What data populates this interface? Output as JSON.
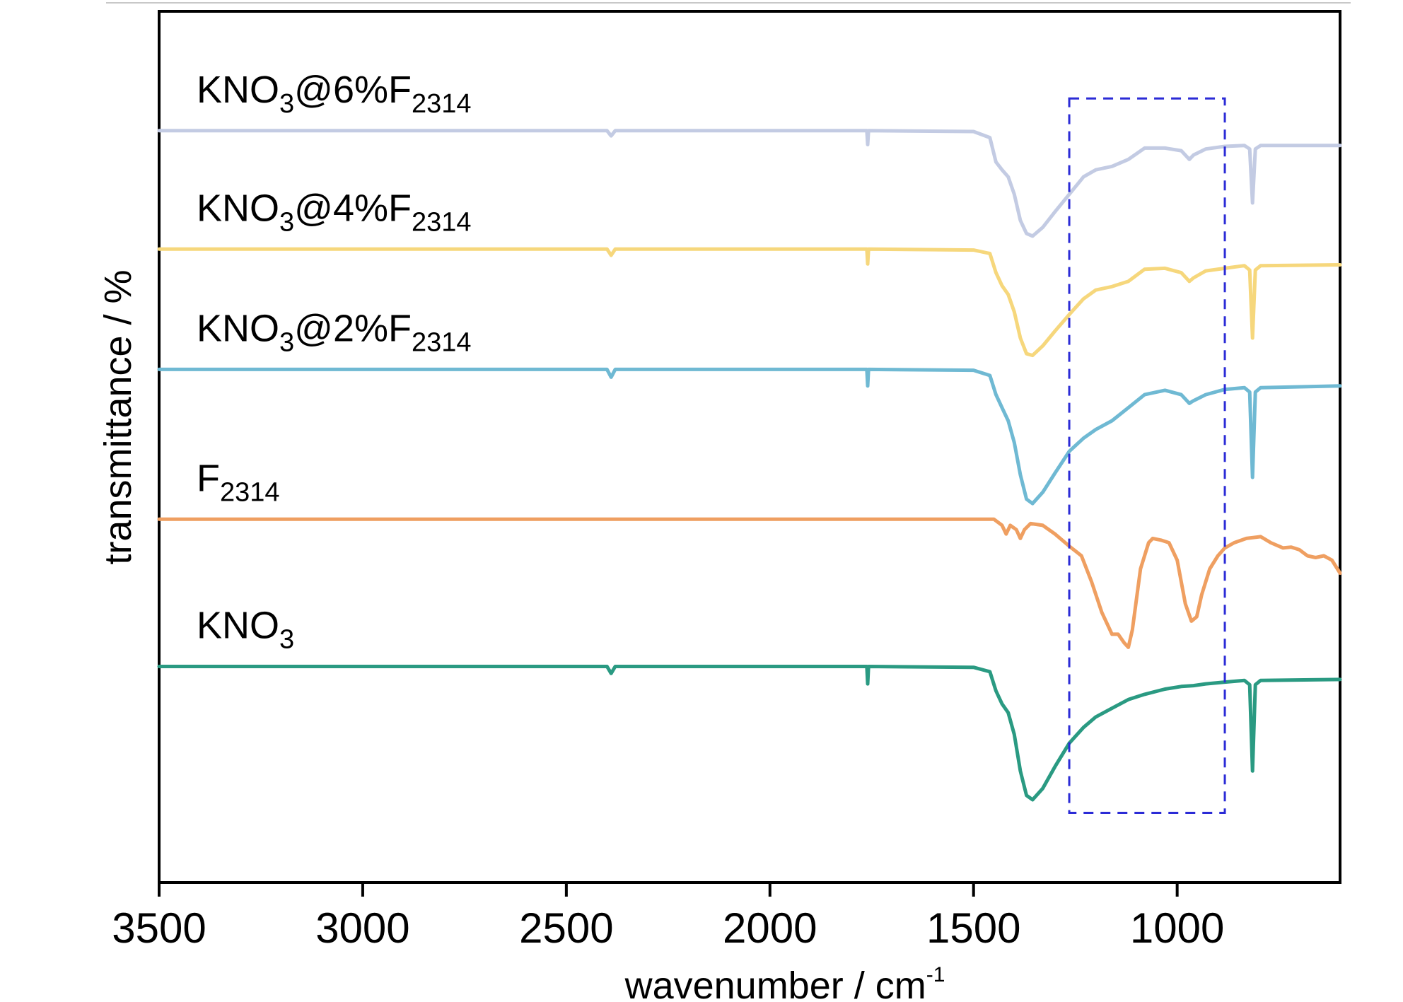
{
  "chart_data": {
    "type": "line",
    "xlabel": {
      "main": "wavenumber / cm",
      "sup": "-1"
    },
    "ylabel": "transmittance / %",
    "x_reversed": true,
    "xlim": [
      3500,
      600
    ],
    "ylim": [
      0,
      1
    ],
    "y_ticks_shown": false,
    "grid": false,
    "x_ticks": [
      3500,
      3000,
      2500,
      2000,
      1500,
      1000
    ],
    "x_tick_labels": [
      "3500",
      "3000",
      "2500",
      "2000",
      "1500",
      "1000"
    ],
    "highlight_box": {
      "x_range": [
        1265,
        883
      ],
      "y_range": [
        0.08,
        0.9
      ],
      "style": "dashed",
      "color": "#2b2bd6"
    },
    "series": [
      {
        "name": "KNO3@6%F2314",
        "label_parts": [
          {
            "t": "KNO"
          },
          {
            "t": "3",
            "sub": true
          },
          {
            "t": "@6%F"
          },
          {
            "t": "2314",
            "sub": true
          }
        ],
        "color": "#c3cbe3",
        "points": [
          [
            3500,
            0.863
          ],
          [
            3250,
            0.863
          ],
          [
            2740,
            0.863
          ],
          [
            2400,
            0.863
          ],
          [
            2390,
            0.857
          ],
          [
            2380,
            0.863
          ],
          [
            2000,
            0.863
          ],
          [
            1762,
            0.863
          ],
          [
            1760,
            0.847
          ],
          [
            1758,
            0.863
          ],
          [
            1500,
            0.862
          ],
          [
            1460,
            0.855
          ],
          [
            1445,
            0.827
          ],
          [
            1430,
            0.818
          ],
          [
            1415,
            0.81
          ],
          [
            1400,
            0.79
          ],
          [
            1385,
            0.76
          ],
          [
            1370,
            0.745
          ],
          [
            1355,
            0.742
          ],
          [
            1330,
            0.752
          ],
          [
            1300,
            0.77
          ],
          [
            1265,
            0.79
          ],
          [
            1230,
            0.81
          ],
          [
            1200,
            0.818
          ],
          [
            1160,
            0.822
          ],
          [
            1120,
            0.83
          ],
          [
            1080,
            0.843
          ],
          [
            1030,
            0.843
          ],
          [
            990,
            0.84
          ],
          [
            970,
            0.83
          ],
          [
            960,
            0.835
          ],
          [
            930,
            0.842
          ],
          [
            883,
            0.845
          ],
          [
            835,
            0.846
          ],
          [
            822,
            0.842
          ],
          [
            815,
            0.78
          ],
          [
            808,
            0.842
          ],
          [
            795,
            0.846
          ],
          [
            600,
            0.846
          ]
        ]
      },
      {
        "name": "KNO3@4%F2314",
        "label_parts": [
          {
            "t": "KNO"
          },
          {
            "t": "3",
            "sub": true
          },
          {
            "t": "@4%F"
          },
          {
            "t": "2314",
            "sub": true
          }
        ],
        "color": "#f6d77c",
        "points": [
          [
            3500,
            0.727
          ],
          [
            3250,
            0.727
          ],
          [
            2740,
            0.727
          ],
          [
            2400,
            0.727
          ],
          [
            2390,
            0.72
          ],
          [
            2380,
            0.727
          ],
          [
            2000,
            0.727
          ],
          [
            1762,
            0.727
          ],
          [
            1760,
            0.71
          ],
          [
            1758,
            0.727
          ],
          [
            1500,
            0.726
          ],
          [
            1460,
            0.722
          ],
          [
            1445,
            0.7
          ],
          [
            1430,
            0.685
          ],
          [
            1415,
            0.675
          ],
          [
            1400,
            0.655
          ],
          [
            1385,
            0.625
          ],
          [
            1370,
            0.607
          ],
          [
            1355,
            0.605
          ],
          [
            1330,
            0.616
          ],
          [
            1300,
            0.633
          ],
          [
            1265,
            0.652
          ],
          [
            1230,
            0.67
          ],
          [
            1200,
            0.68
          ],
          [
            1160,
            0.684
          ],
          [
            1120,
            0.69
          ],
          [
            1080,
            0.704
          ],
          [
            1030,
            0.705
          ],
          [
            990,
            0.7
          ],
          [
            970,
            0.69
          ],
          [
            960,
            0.694
          ],
          [
            930,
            0.702
          ],
          [
            883,
            0.705
          ],
          [
            835,
            0.708
          ],
          [
            822,
            0.703
          ],
          [
            815,
            0.625
          ],
          [
            808,
            0.703
          ],
          [
            795,
            0.708
          ],
          [
            600,
            0.709
          ]
        ]
      },
      {
        "name": "KNO3@2%F2314",
        "label_parts": [
          {
            "t": "KNO"
          },
          {
            "t": "3",
            "sub": true
          },
          {
            "t": "@2%F"
          },
          {
            "t": "2314",
            "sub": true
          }
        ],
        "color": "#6fb9d3",
        "points": [
          [
            3500,
            0.589
          ],
          [
            3250,
            0.589
          ],
          [
            2740,
            0.589
          ],
          [
            2400,
            0.589
          ],
          [
            2390,
            0.58
          ],
          [
            2380,
            0.589
          ],
          [
            2000,
            0.589
          ],
          [
            1762,
            0.589
          ],
          [
            1760,
            0.57
          ],
          [
            1758,
            0.589
          ],
          [
            1500,
            0.588
          ],
          [
            1460,
            0.582
          ],
          [
            1445,
            0.56
          ],
          [
            1430,
            0.545
          ],
          [
            1415,
            0.53
          ],
          [
            1400,
            0.505
          ],
          [
            1385,
            0.468
          ],
          [
            1370,
            0.44
          ],
          [
            1355,
            0.435
          ],
          [
            1330,
            0.448
          ],
          [
            1300,
            0.47
          ],
          [
            1265,
            0.495
          ],
          [
            1230,
            0.51
          ],
          [
            1200,
            0.52
          ],
          [
            1160,
            0.53
          ],
          [
            1120,
            0.545
          ],
          [
            1080,
            0.56
          ],
          [
            1030,
            0.565
          ],
          [
            990,
            0.56
          ],
          [
            970,
            0.55
          ],
          [
            960,
            0.553
          ],
          [
            930,
            0.56
          ],
          [
            883,
            0.566
          ],
          [
            835,
            0.568
          ],
          [
            822,
            0.563
          ],
          [
            815,
            0.465
          ],
          [
            808,
            0.563
          ],
          [
            795,
            0.568
          ],
          [
            600,
            0.57
          ]
        ]
      },
      {
        "name": "F2314",
        "label_parts": [
          {
            "t": "F"
          },
          {
            "t": "2314",
            "sub": true
          }
        ],
        "color": "#ef9f61",
        "points": [
          [
            3500,
            0.417
          ],
          [
            3250,
            0.417
          ],
          [
            2740,
            0.417
          ],
          [
            2400,
            0.417
          ],
          [
            2000,
            0.417
          ],
          [
            1762,
            0.417
          ],
          [
            1500,
            0.417
          ],
          [
            1450,
            0.417
          ],
          [
            1430,
            0.41
          ],
          [
            1420,
            0.4
          ],
          [
            1410,
            0.41
          ],
          [
            1395,
            0.405
          ],
          [
            1385,
            0.395
          ],
          [
            1375,
            0.405
          ],
          [
            1360,
            0.412
          ],
          [
            1330,
            0.41
          ],
          [
            1300,
            0.4
          ],
          [
            1265,
            0.386
          ],
          [
            1235,
            0.375
          ],
          [
            1210,
            0.345
          ],
          [
            1185,
            0.31
          ],
          [
            1160,
            0.285
          ],
          [
            1145,
            0.285
          ],
          [
            1130,
            0.275
          ],
          [
            1120,
            0.27
          ],
          [
            1110,
            0.29
          ],
          [
            1090,
            0.36
          ],
          [
            1070,
            0.39
          ],
          [
            1060,
            0.395
          ],
          [
            1040,
            0.393
          ],
          [
            1020,
            0.39
          ],
          [
            1000,
            0.37
          ],
          [
            980,
            0.32
          ],
          [
            965,
            0.3
          ],
          [
            952,
            0.305
          ],
          [
            940,
            0.33
          ],
          [
            920,
            0.36
          ],
          [
            900,
            0.375
          ],
          [
            883,
            0.384
          ],
          [
            860,
            0.39
          ],
          [
            830,
            0.395
          ],
          [
            795,
            0.397
          ],
          [
            770,
            0.39
          ],
          [
            740,
            0.384
          ],
          [
            720,
            0.385
          ],
          [
            700,
            0.382
          ],
          [
            680,
            0.375
          ],
          [
            660,
            0.373
          ],
          [
            640,
            0.375
          ],
          [
            620,
            0.37
          ],
          [
            600,
            0.355
          ]
        ]
      },
      {
        "name": "KNO3",
        "label_parts": [
          {
            "t": "KNO"
          },
          {
            "t": "3",
            "sub": true
          }
        ],
        "color": "#2a9a82",
        "points": [
          [
            3500,
            0.248
          ],
          [
            3250,
            0.248
          ],
          [
            2740,
            0.248
          ],
          [
            2400,
            0.248
          ],
          [
            2390,
            0.24
          ],
          [
            2380,
            0.248
          ],
          [
            2000,
            0.248
          ],
          [
            1762,
            0.248
          ],
          [
            1760,
            0.228
          ],
          [
            1758,
            0.248
          ],
          [
            1500,
            0.247
          ],
          [
            1460,
            0.242
          ],
          [
            1445,
            0.22
          ],
          [
            1430,
            0.205
          ],
          [
            1415,
            0.195
          ],
          [
            1400,
            0.17
          ],
          [
            1385,
            0.128
          ],
          [
            1370,
            0.1
          ],
          [
            1355,
            0.095
          ],
          [
            1330,
            0.108
          ],
          [
            1300,
            0.133
          ],
          [
            1265,
            0.16
          ],
          [
            1230,
            0.178
          ],
          [
            1200,
            0.19
          ],
          [
            1160,
            0.2
          ],
          [
            1120,
            0.21
          ],
          [
            1080,
            0.216
          ],
          [
            1030,
            0.222
          ],
          [
            990,
            0.225
          ],
          [
            960,
            0.226
          ],
          [
            930,
            0.228
          ],
          [
            883,
            0.23
          ],
          [
            835,
            0.232
          ],
          [
            822,
            0.227
          ],
          [
            815,
            0.128
          ],
          [
            808,
            0.227
          ],
          [
            795,
            0.232
          ],
          [
            600,
            0.233
          ]
        ]
      }
    ]
  }
}
